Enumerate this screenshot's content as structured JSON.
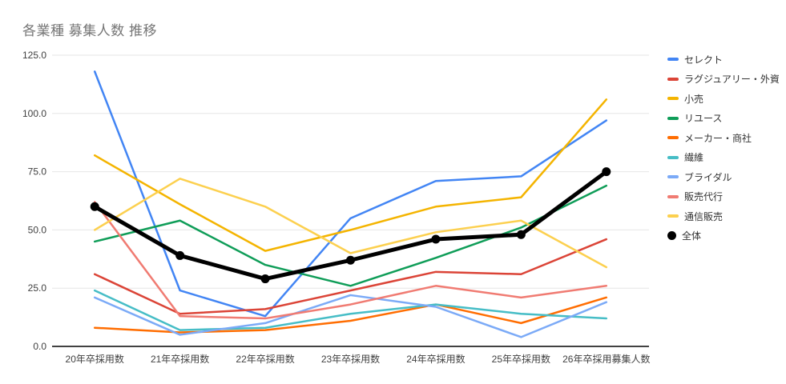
{
  "title": "各業種 募集人数 推移",
  "axis": {
    "y_ticks": [
      "0.0",
      "25.0",
      "50.0",
      "75.0",
      "100.0",
      "125.0"
    ],
    "label_color": "#404040",
    "grid_color": "#e6e6e6",
    "baseline_color": "#424242"
  },
  "chart_data": {
    "type": "line",
    "title": "各業種 募集人数 推移",
    "categories": [
      "20年卒採用数",
      "21年卒採用数",
      "22年卒採用数",
      "23年卒採用数",
      "24年卒採用数",
      "25年卒採用数",
      "26年卒採用募集人数"
    ],
    "ylim": [
      0,
      125
    ],
    "grid": true,
    "legend_position": "right",
    "series": [
      {
        "name": "セレクト",
        "color": "#4285F4",
        "marker": "none",
        "values": [
          118,
          24,
          13,
          55,
          71,
          73,
          97
        ]
      },
      {
        "name": "ラグジュアリー・外資",
        "color": "#DB4437",
        "marker": "none",
        "values": [
          31,
          14,
          16,
          24,
          32,
          31,
          46
        ]
      },
      {
        "name": "小売",
        "color": "#F4B400",
        "marker": "none",
        "values": [
          82,
          61,
          41,
          50,
          60,
          64,
          106
        ]
      },
      {
        "name": "リユース",
        "color": "#0F9D58",
        "marker": "none",
        "values": [
          45,
          54,
          35,
          26,
          38,
          51,
          69
        ]
      },
      {
        "name": "メーカー・商社",
        "color": "#FF6D01",
        "marker": "none",
        "values": [
          8,
          6,
          7,
          11,
          18,
          10,
          21
        ]
      },
      {
        "name": "繊維",
        "color": "#46BDC6",
        "marker": "none",
        "values": [
          24,
          7,
          8,
          14,
          18,
          14,
          12
        ]
      },
      {
        "name": "ブライダル",
        "color": "#7BAAF7",
        "marker": "none",
        "values": [
          21,
          5,
          10,
          22,
          17,
          4,
          19
        ]
      },
      {
        "name": "販売代行",
        "color": "#F07B72",
        "marker": "none",
        "values": [
          62,
          13,
          12,
          18,
          26,
          21,
          26
        ]
      },
      {
        "name": "通信販売",
        "color": "#FCD04F",
        "marker": "none",
        "values": [
          50,
          72,
          60,
          40,
          49,
          54,
          34
        ]
      },
      {
        "name": "全体",
        "color": "#000000",
        "marker": "circle",
        "values": [
          60,
          39,
          29,
          37,
          46,
          48,
          75
        ]
      }
    ]
  }
}
